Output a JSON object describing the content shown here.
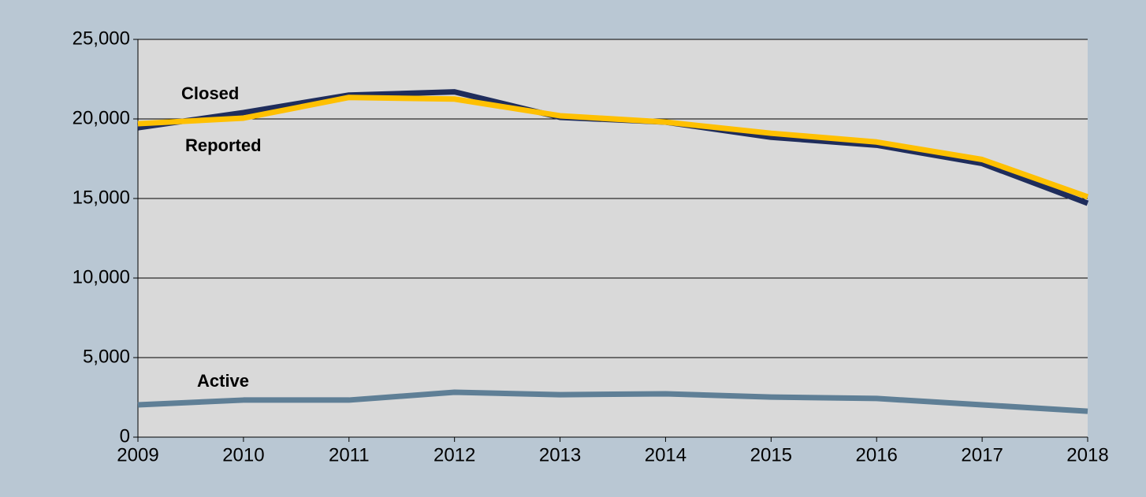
{
  "chart_data": {
    "type": "line",
    "categories": [
      "2009",
      "2010",
      "2011",
      "2012",
      "2013",
      "2014",
      "2015",
      "2016",
      "2017",
      "2018"
    ],
    "series": [
      {
        "name": "Reported",
        "color": "#1f2d5c",
        "values": [
          19450,
          20400,
          21500,
          21700,
          20100,
          19800,
          18850,
          18350,
          17200,
          14700
        ]
      },
      {
        "name": "Closed",
        "color": "#ffc000",
        "values": [
          19700,
          20050,
          21350,
          21250,
          20200,
          19800,
          19100,
          18550,
          17450,
          15100
        ]
      },
      {
        "name": "Active",
        "color": "#5f7f96",
        "values": [
          2030,
          2330,
          2330,
          2820,
          2670,
          2720,
          2520,
          2430,
          2030,
          1630
        ]
      }
    ],
    "ylim": [
      0,
      25000
    ],
    "yticks": [
      0,
      {
        "value": 5000,
        "label": "5,000"
      },
      {
        "value": 10000,
        "label": "10,000"
      },
      {
        "value": 15000,
        "label": "15,000"
      },
      {
        "value": 20000,
        "label": "20,000"
      },
      {
        "value": 25000,
        "label": "25,000"
      }
    ],
    "grid": true
  }
}
